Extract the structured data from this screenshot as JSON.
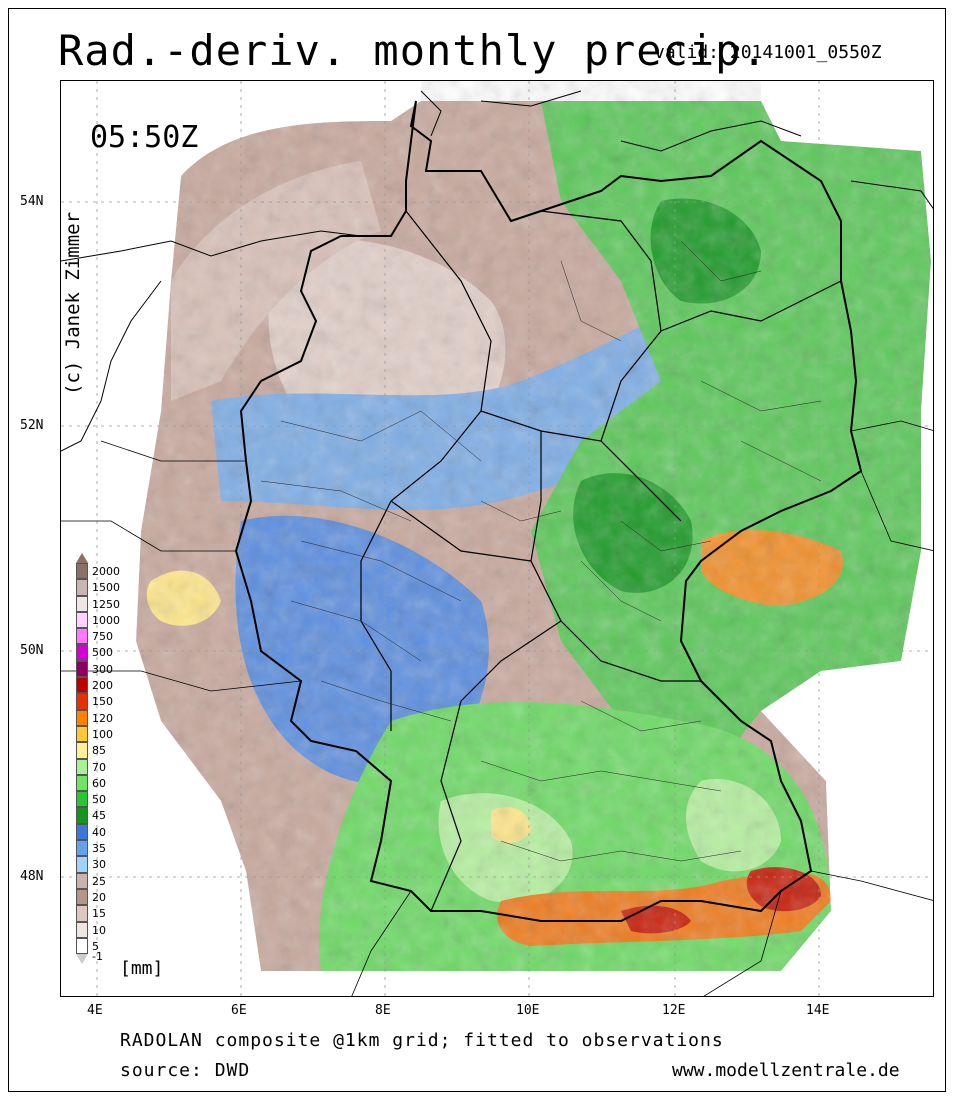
{
  "title": "Rad.-deriv. monthly precip.",
  "valid_label": "valid: 20141001_0550Z",
  "time_label": "05:50Z",
  "copyright": "(c) Janek Zimmer",
  "lat_labels": [
    "54N",
    "52N",
    "50N",
    "48N"
  ],
  "lon_labels": [
    "4E",
    "6E",
    "8E",
    "10E",
    "12E",
    "14E"
  ],
  "legend": {
    "unit": "[mm]",
    "bottom_label": "-1",
    "entries": [
      {
        "label": "2000",
        "color": "#8c7068"
      },
      {
        "label": "1500",
        "color": "#c8b4b0"
      },
      {
        "label": "1250",
        "color": "#f0e6e6"
      },
      {
        "label": "1000",
        "color": "#ffd2ff"
      },
      {
        "label": "750",
        "color": "#ff78ff"
      },
      {
        "label": "500",
        "color": "#d200d2"
      },
      {
        "label": "300",
        "color": "#8c0064"
      },
      {
        "label": "200",
        "color": "#be0000"
      },
      {
        "label": "150",
        "color": "#e63200"
      },
      {
        "label": "120",
        "color": "#ff8200"
      },
      {
        "label": "100",
        "color": "#ffc832"
      },
      {
        "label": "85",
        "color": "#fff096"
      },
      {
        "label": "70",
        "color": "#aaf096"
      },
      {
        "label": "60",
        "color": "#6ee664"
      },
      {
        "label": "50",
        "color": "#28c832"
      },
      {
        "label": "45",
        "color": "#14961e"
      },
      {
        "label": "40",
        "color": "#3c78dc"
      },
      {
        "label": "35",
        "color": "#64a0f0"
      },
      {
        "label": "30",
        "color": "#a0d2fa"
      },
      {
        "label": "25",
        "color": "#c8b4aa"
      },
      {
        "label": "20",
        "color": "#b49688"
      },
      {
        "label": "15",
        "color": "#dcc8c0"
      },
      {
        "label": "10",
        "color": "#f0e6e0"
      },
      {
        "label": "5",
        "color": "#ffffff"
      }
    ]
  },
  "footer": {
    "line1": "RADOLAN composite @1km grid; fitted to observations",
    "line2": "source: DWD",
    "website": "www.modellzentrale.de"
  }
}
